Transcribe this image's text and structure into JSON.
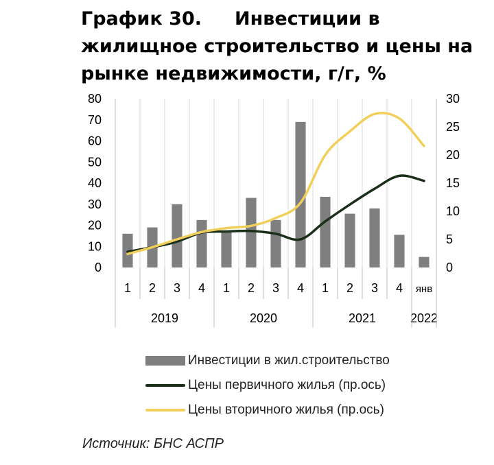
{
  "title": {
    "number": "График 30.",
    "text": "Инвестиции в жилищное строительство и цены на рынке недвижимости, г/г, %"
  },
  "source": "Источник: БНС АСПР",
  "chart_data": {
    "type": "bar+line",
    "categories": [
      "1",
      "2",
      "3",
      "4",
      "1",
      "2",
      "3",
      "4",
      "1",
      "2",
      "3",
      "4",
      "янв"
    ],
    "years": [
      {
        "label": "2019",
        "span": [
          0,
          3
        ]
      },
      {
        "label": "2020",
        "span": [
          4,
          7
        ]
      },
      {
        "label": "2021",
        "span": [
          8,
          11
        ]
      },
      {
        "label": "2022",
        "span": [
          12,
          12
        ]
      }
    ],
    "left_axis": {
      "min": 0,
      "max": 80,
      "ticks": [
        0,
        10,
        20,
        30,
        40,
        50,
        60,
        70,
        80
      ]
    },
    "right_axis": {
      "min": 0,
      "max": 30,
      "ticks": [
        0,
        5,
        10,
        15,
        20,
        25,
        30
      ]
    },
    "grid": "vertical",
    "legend_position": "bottom",
    "series": [
      {
        "name": "Инвестиции в жил.строительство",
        "type": "bar",
        "axis": "left",
        "color": "#7f7f7f",
        "values": [
          16,
          19,
          30,
          22.5,
          17.5,
          33,
          22.5,
          69,
          33.5,
          25.5,
          28,
          15.5,
          5
        ]
      },
      {
        "name": "Цены первичного жилья (пр.ось)",
        "type": "line",
        "axis": "right",
        "color": "#1a2e1a",
        "values": [
          2.8,
          3.6,
          4.6,
          6.2,
          6.4,
          6.5,
          6.0,
          5.0,
          8.2,
          11.2,
          14.0,
          16.3,
          15.4
        ]
      },
      {
        "name": "Цены вторичного жилья  (пр.ось)",
        "type": "line",
        "axis": "right",
        "color": "#f0cf5b",
        "values": [
          2.4,
          3.6,
          5.0,
          6.3,
          7.0,
          7.4,
          8.8,
          11.5,
          20.0,
          24.2,
          27.3,
          26.5,
          21.6
        ]
      }
    ]
  }
}
